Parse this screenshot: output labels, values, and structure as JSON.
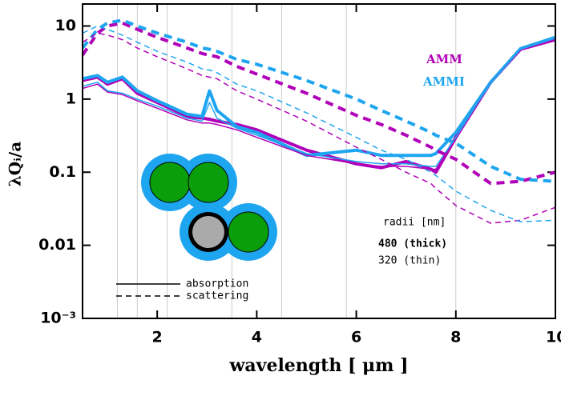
{
  "chart_data": {
    "type": "line",
    "x_label": "wavelength [ μm ]",
    "y_label": "λQᵢ/a",
    "xlim": [
      0.5,
      10
    ],
    "xticks": [
      2,
      4,
      6,
      8,
      10
    ],
    "ylim": [
      0.001,
      20
    ],
    "y_scale": "log",
    "yticks": [
      {
        "value": 0.001,
        "label": "10⁻³"
      },
      0.01,
      0.1,
      1,
      10
    ],
    "vlines": [
      1.2,
      1.6,
      2.2,
      3.5,
      4.5,
      5.8,
      8.0
    ],
    "vline_color": "#cccccc",
    "x": [
      0.5,
      0.8,
      1.0,
      1.3,
      1.6,
      2.0,
      2.6,
      2.9,
      3.05,
      3.2,
      3.6,
      4.0,
      5.0,
      6.0,
      6.5,
      7.0,
      7.5,
      7.6,
      8.0,
      8.7,
      9.3,
      10
    ],
    "series": [
      {
        "color": "#b000b8",
        "linestyle": "solid",
        "linewidth": 4,
        "values": [
          1.8,
          2.0,
          1.6,
          1.9,
          1.2,
          0.9,
          0.58,
          0.55,
          0.53,
          0.5,
          0.45,
          0.38,
          0.2,
          0.13,
          0.115,
          0.14,
          0.11,
          0.1,
          0.3,
          1.7,
          4.8,
          6.5
        ]
      },
      {
        "color": "#1ea5f0",
        "linestyle": "solid",
        "linewidth": 4,
        "values": [
          1.9,
          2.1,
          1.7,
          2.0,
          1.3,
          0.95,
          0.62,
          0.58,
          1.3,
          0.7,
          0.42,
          0.35,
          0.17,
          0.2,
          0.17,
          0.17,
          0.17,
          0.18,
          0.35,
          1.7,
          4.9,
          7.0
        ]
      },
      {
        "color": "#b000b8",
        "linestyle": "solid",
        "linewidth": 1.5,
        "values": [
          1.4,
          1.6,
          1.25,
          1.15,
          0.95,
          0.75,
          0.52,
          0.47,
          0.47,
          0.45,
          0.38,
          0.3,
          0.17,
          0.13,
          0.12,
          0.12,
          0.11,
          0.11,
          0.3,
          1.7,
          4.7,
          6.6
        ]
      },
      {
        "color": "#1ea5f0",
        "linestyle": "solid",
        "linewidth": 1.5,
        "values": [
          1.5,
          1.7,
          1.3,
          1.2,
          1.0,
          0.8,
          0.55,
          0.5,
          0.9,
          0.55,
          0.4,
          0.32,
          0.18,
          0.14,
          0.13,
          0.13,
          0.12,
          0.12,
          0.3,
          1.7,
          4.8,
          6.8
        ]
      },
      {
        "color": "#b000b8",
        "linestyle": "dashed",
        "linewidth": 4,
        "values": [
          4,
          8,
          10,
          11,
          9,
          7,
          5,
          4.2,
          4,
          3.8,
          2.8,
          2.2,
          1.2,
          0.6,
          0.45,
          0.32,
          0.22,
          0.2,
          0.15,
          0.07,
          0.075,
          0.1
        ]
      },
      {
        "color": "#1ea5f0",
        "linestyle": "dashed",
        "linewidth": 4,
        "values": [
          5,
          9,
          11,
          12,
          10,
          8,
          6,
          5,
          4.8,
          4.5,
          3.5,
          3.0,
          1.8,
          1.0,
          0.7,
          0.5,
          0.35,
          0.32,
          0.25,
          0.12,
          0.08,
          0.075
        ]
      },
      {
        "color": "#b000b8",
        "linestyle": "dashed",
        "linewidth": 1.5,
        "values": [
          6,
          8,
          7.5,
          6.5,
          5,
          3.8,
          2.6,
          2.1,
          2,
          1.9,
          1.3,
          1.0,
          0.5,
          0.22,
          0.15,
          0.1,
          0.07,
          0.06,
          0.035,
          0.02,
          0.022,
          0.033
        ]
      },
      {
        "color": "#1ea5f0",
        "linestyle": "dashed",
        "linewidth": 1.5,
        "values": [
          8,
          10,
          9,
          7.5,
          6,
          4.5,
          3.2,
          2.6,
          2.5,
          2.3,
          1.6,
          1.3,
          0.65,
          0.3,
          0.2,
          0.15,
          0.1,
          0.09,
          0.055,
          0.03,
          0.021,
          0.022
        ]
      }
    ],
    "legend": {
      "colors": [
        {
          "label": "AMM",
          "color": "#b000b8"
        },
        {
          "label": "AMMI",
          "color": "#1ea5f0"
        }
      ],
      "styles": [
        {
          "label": "absorption",
          "linestyle": "solid"
        },
        {
          "label": "scattering",
          "linestyle": "dashed"
        }
      ],
      "radii_title": "radii [nm]",
      "radii": [
        "480 (thick)",
        "320 (thin)"
      ]
    }
  }
}
